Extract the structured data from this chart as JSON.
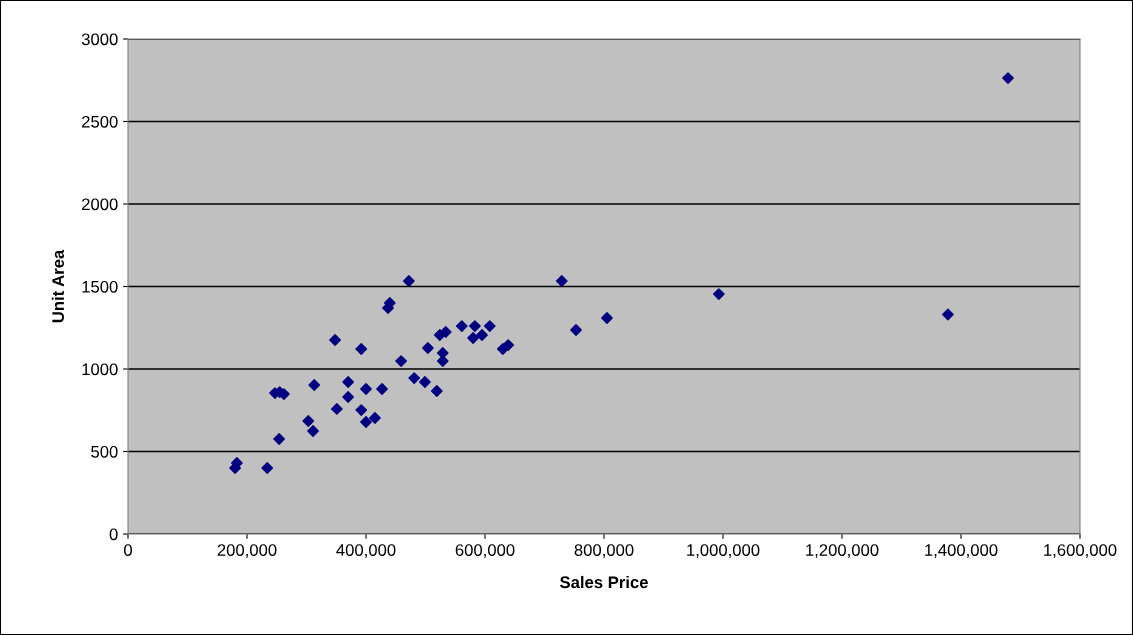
{
  "chart_data": {
    "type": "scatter",
    "xlabel": "Sales Price",
    "ylabel": "Unit Area",
    "x": [
      180000,
      183000,
      234000,
      254000,
      247000,
      255000,
      262000,
      313000,
      303000,
      311000,
      348000,
      392000,
      370000,
      400000,
      370000,
      351000,
      392000,
      400000,
      415000,
      427000,
      440000,
      437000,
      472000,
      459000,
      481000,
      499000,
      519000,
      504000,
      524000,
      534000,
      529000,
      529000,
      561000,
      583000,
      608000,
      580000,
      595000,
      630000,
      639000,
      729000,
      753000,
      805000,
      993000,
      1378000,
      1479000
    ],
    "series": [
      {
        "color": "#000080",
        "values": [
          400,
          430,
          400,
          576,
          854,
          860,
          848,
          903,
          685,
          624,
          1176,
          1121,
          921,
          879,
          830,
          758,
          751,
          679,
          703,
          879,
          1400,
          1370,
          1533,
          1048,
          945,
          921,
          867,
          1127,
          1206,
          1224,
          1097,
          1048,
          1260,
          1260,
          1260,
          1188,
          1206,
          1121,
          1145,
          1533,
          1236,
          1309,
          1454,
          1330,
          2763
        ]
      }
    ],
    "xlim": [
      0,
      1600000
    ],
    "ylim": [
      0,
      3000
    ],
    "xticks": [
      {
        "value": 0,
        "label": "0"
      },
      {
        "value": 200000,
        "label": "200,000"
      },
      {
        "value": 400000,
        "label": "400,000"
      },
      {
        "value": 600000,
        "label": "600,000"
      },
      {
        "value": 800000,
        "label": "800,000"
      },
      {
        "value": 1000000,
        "label": "1,000,000"
      },
      {
        "value": 1200000,
        "label": "1,200,000"
      },
      {
        "value": 1400000,
        "label": "1,400,000"
      },
      {
        "value": 1600000,
        "label": "1,600,000"
      }
    ],
    "yticks": [
      0,
      500,
      1000,
      1500,
      2000,
      2500,
      3000
    ],
    "grid": "y",
    "marker": "diamond",
    "legend": false
  }
}
